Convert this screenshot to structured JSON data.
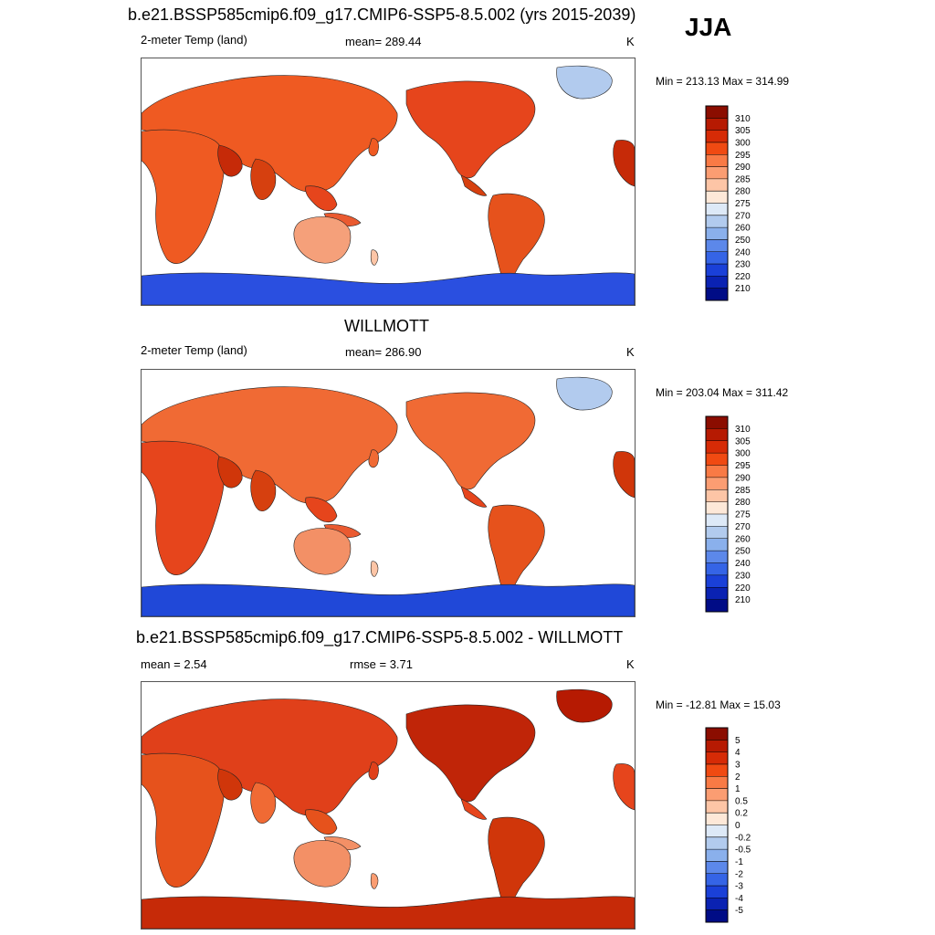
{
  "season": "JJA",
  "chart_data": [
    {
      "type": "heatmap",
      "title": "b.e21.BSSP585cmip6.f09_g17.CMIP6-SSP5-8.5.002 (yrs 2015-2039)",
      "left_label": "2-meter Temp (land)",
      "center_label": "mean= 289.44",
      "units": "K",
      "minmax": "Min = 213.13 Max = 314.99",
      "colorbar": {
        "ticks": [
          "310",
          "305",
          "300",
          "295",
          "290",
          "285",
          "280",
          "275",
          "270",
          "260",
          "250",
          "240",
          "230",
          "220",
          "210"
        ],
        "colors": [
          "#8b0d00",
          "#b61a02",
          "#d62b06",
          "#f04a12",
          "#f97a45",
          "#fb9d72",
          "#fdc5a6",
          "#fde8d8",
          "#dde9f7",
          "#b2cbee",
          "#8ab0ec",
          "#5c88ea",
          "#3564e6",
          "#1a40d8",
          "#0a22b2",
          "#000c86"
        ]
      }
    },
    {
      "type": "heatmap",
      "title": "WILLMOTT",
      "left_label": "2-meter Temp (land)",
      "center_label": "mean= 286.90",
      "units": "K",
      "minmax": "Min = 203.04 Max = 311.42",
      "colorbar": {
        "ticks": [
          "310",
          "305",
          "300",
          "295",
          "290",
          "285",
          "280",
          "275",
          "270",
          "260",
          "250",
          "240",
          "230",
          "220",
          "210"
        ],
        "colors": [
          "#8b0d00",
          "#b61a02",
          "#d62b06",
          "#f04a12",
          "#f97a45",
          "#fb9d72",
          "#fdc5a6",
          "#fde8d8",
          "#dde9f7",
          "#b2cbee",
          "#8ab0ec",
          "#5c88ea",
          "#3564e6",
          "#1a40d8",
          "#0a22b2",
          "#000c86"
        ]
      }
    },
    {
      "type": "heatmap",
      "title": "b.e21.BSSP585cmip6.f09_g17.CMIP6-SSP5-8.5.002 - WILLMOTT",
      "left_label": "mean =   2.54",
      "center_label": "rmse =   3.71",
      "units": "K",
      "minmax": "Min = -12.81 Max =  15.03",
      "colorbar": {
        "ticks": [
          "5",
          "4",
          "3",
          "2",
          "1",
          "0.5",
          "0.2",
          "0",
          "-0.2",
          "-0.5",
          "-1",
          "-2",
          "-3",
          "-4",
          "-5"
        ],
        "colors": [
          "#8b0d00",
          "#b61a02",
          "#d62b06",
          "#f04a12",
          "#f97a45",
          "#fb9d72",
          "#fdc5a6",
          "#fde8d8",
          "#dde9f7",
          "#b2cbee",
          "#8ab0ec",
          "#5c88ea",
          "#3564e6",
          "#1a40d8",
          "#0a22b2",
          "#000c86"
        ]
      }
    }
  ]
}
